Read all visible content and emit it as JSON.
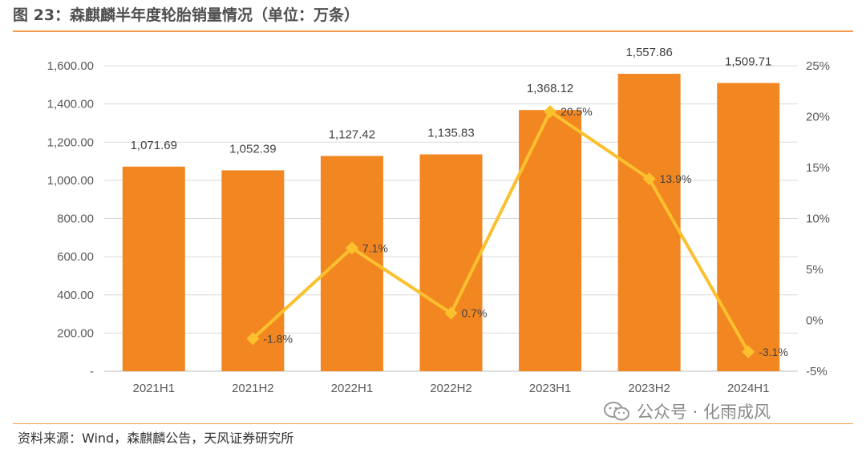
{
  "title": "图 23：森麒麟半年度轮胎销量情况（单位：万条）",
  "source": "资料来源：Wind，森麒麟公告，天风证券研究所",
  "watermark": {
    "text": "公众号 · 化雨成风",
    "icon": "wechat-icon"
  },
  "colors": {
    "bar": "#F28722",
    "line": "#FBC02D",
    "rule": "#F39C4A",
    "grid": "#D9D9D9"
  },
  "chart_data": {
    "type": "bar",
    "categories": [
      "2021H1",
      "2021H2",
      "2022H1",
      "2022H2",
      "2023H1",
      "2023H2",
      "2024H1"
    ],
    "series": [
      {
        "type": "bar",
        "axis": "left",
        "values": [
          1071.69,
          1052.39,
          1127.42,
          1135.83,
          1368.12,
          1557.86,
          1509.71
        ],
        "labels": [
          "1,071.69",
          "1,052.39",
          "1,127.42",
          "1,135.83",
          "1,368.12",
          "1,557.86",
          "1,509.71"
        ]
      },
      {
        "type": "line",
        "axis": "right",
        "marker": "diamond",
        "values": [
          null,
          -1.8,
          7.1,
          0.7,
          20.5,
          13.9,
          -3.1
        ],
        "labels": [
          "",
          "-1.8%",
          "7.1%",
          "0.7%",
          "20.5%",
          "13.9%",
          "-3.1%"
        ]
      }
    ],
    "y_left": {
      "lim": [
        0,
        1600
      ],
      "ticks": [
        0,
        200,
        400,
        600,
        800,
        1000,
        1200,
        1400,
        1600
      ],
      "tick_labels": [
        "-",
        "200.00",
        "400.00",
        "600.00",
        "800.00",
        "1,000.00",
        "1,200.00",
        "1,400.00",
        "1,600.00"
      ]
    },
    "y_right": {
      "lim": [
        -5,
        25
      ],
      "ticks": [
        -5,
        0,
        5,
        10,
        15,
        20,
        25
      ],
      "tick_labels": [
        "-5%",
        "0%",
        "5%",
        "10%",
        "15%",
        "20%",
        "25%"
      ]
    },
    "grid": true
  }
}
